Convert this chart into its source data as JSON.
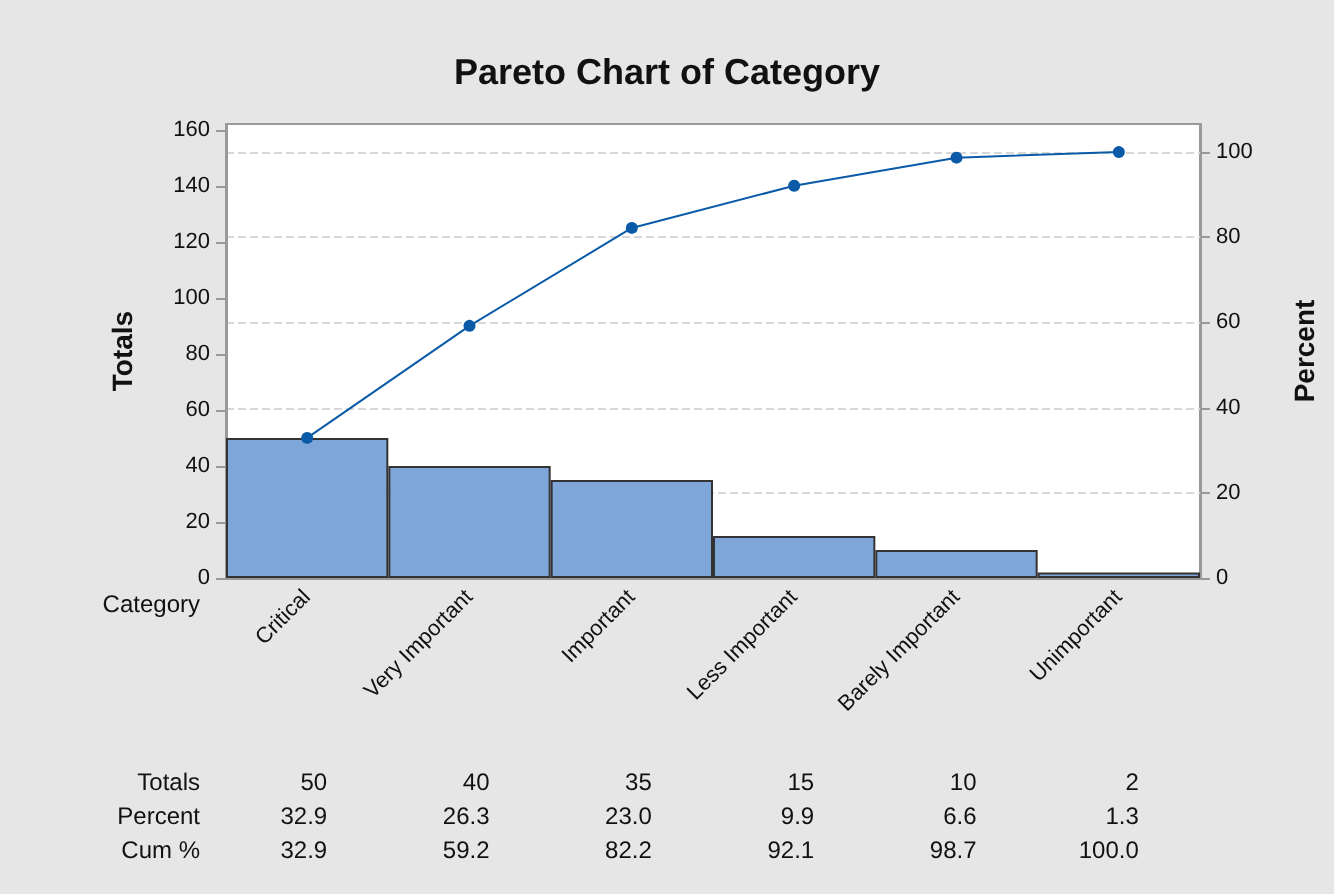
{
  "chart_data": {
    "type": "bar",
    "title": "Pareto Chart of Category",
    "xlabel": "Category",
    "ylabel": "Totals",
    "y2label": "Percent",
    "categories": [
      "Critical",
      "Very Important",
      "Important",
      "Less Important",
      "Barely Important",
      "Unimportant"
    ],
    "series": [
      {
        "color": "#7ea6d8",
        "values": [
          50,
          40,
          35,
          15,
          10,
          2
        ]
      },
      {
        "type": "line",
        "axis": "y2",
        "color": "#0b5aa8",
        "values": [
          32.9,
          59.2,
          82.2,
          92.1,
          98.7,
          100.0
        ]
      }
    ],
    "annotations": [
      "Totals",
      "50",
      "40",
      "35",
      "15",
      "10",
      "2",
      "Percent",
      "32.9",
      "26.3",
      "23.0",
      "9.9",
      "6.6",
      "1.3",
      "Cum %",
      "32.9",
      "59.2",
      "82.2",
      "92.1",
      "98.7",
      "100.0"
    ],
    "ylim": [
      0,
      162
    ],
    "yticks": [
      0,
      20,
      40,
      60,
      80,
      100,
      120,
      140,
      160
    ],
    "y2lim": [
      0,
      106.6
    ],
    "y2ticks": [
      0,
      20,
      40,
      60,
      80,
      100
    ],
    "grid": "y",
    "marker": "circle",
    "line_style": "solid"
  }
}
